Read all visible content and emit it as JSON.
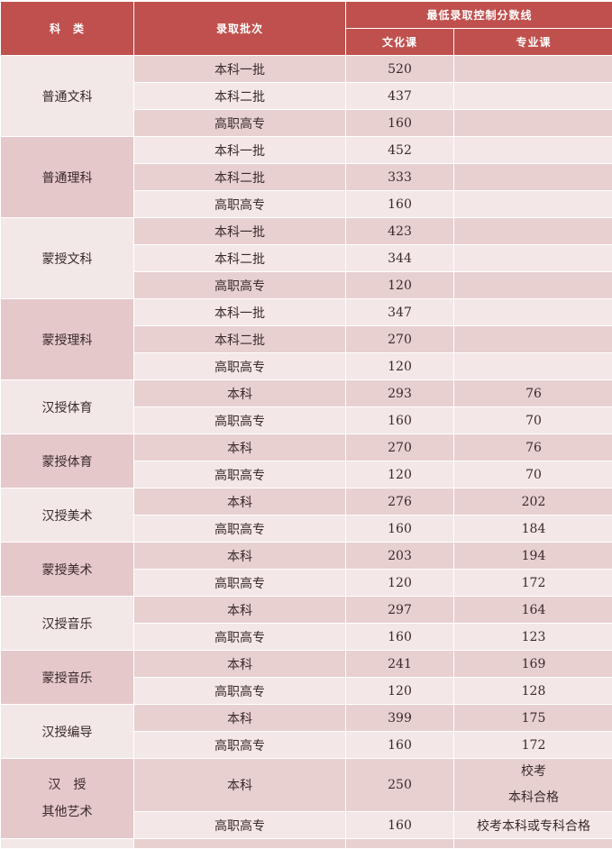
{
  "header": {
    "category": "科　类",
    "batch": "录取批次",
    "min_score": "最低录取控制分数线",
    "culture": "文化课",
    "major": "专业课"
  },
  "colors": {
    "header": "#c0504d",
    "row_dark": "#e8d0d0",
    "row_light": "#f3e7e7"
  },
  "groups": [
    {
      "name": "普通文科",
      "rows": [
        [
          "本科一批",
          "520",
          ""
        ],
        [
          "本科二批",
          "437",
          ""
        ],
        [
          "高职高专",
          "160",
          ""
        ]
      ]
    },
    {
      "name": "普通理科",
      "rows": [
        [
          "本科一批",
          "452",
          ""
        ],
        [
          "本科二批",
          "333",
          ""
        ],
        [
          "高职高专",
          "160",
          ""
        ]
      ]
    },
    {
      "name": "蒙授文科",
      "rows": [
        [
          "本科一批",
          "423",
          ""
        ],
        [
          "本科二批",
          "344",
          ""
        ],
        [
          "高职高专",
          "120",
          ""
        ]
      ]
    },
    {
      "name": "蒙授理科",
      "rows": [
        [
          "本科一批",
          "347",
          ""
        ],
        [
          "本科二批",
          "270",
          ""
        ],
        [
          "高职高专",
          "120",
          ""
        ]
      ]
    },
    {
      "name": "汉授体育",
      "rows": [
        [
          "本科",
          "293",
          "76"
        ],
        [
          "高职高专",
          "160",
          "70"
        ]
      ]
    },
    {
      "name": "蒙授体育",
      "rows": [
        [
          "本科",
          "270",
          "76"
        ],
        [
          "高职高专",
          "120",
          "70"
        ]
      ]
    },
    {
      "name": "汉授美术",
      "rows": [
        [
          "本科",
          "276",
          "202"
        ],
        [
          "高职高专",
          "160",
          "184"
        ]
      ]
    },
    {
      "name": "蒙授美术",
      "rows": [
        [
          "本科",
          "203",
          "194"
        ],
        [
          "高职高专",
          "120",
          "172"
        ]
      ]
    },
    {
      "name": "汉授音乐",
      "rows": [
        [
          "本科",
          "297",
          "164"
        ],
        [
          "高职高专",
          "160",
          "123"
        ]
      ]
    },
    {
      "name": "蒙授音乐",
      "rows": [
        [
          "本科",
          "241",
          "169"
        ],
        [
          "高职高专",
          "120",
          "128"
        ]
      ]
    },
    {
      "name": "汉授编导",
      "rows": [
        [
          "本科",
          "399",
          "175"
        ],
        [
          "高职高专",
          "160",
          "172"
        ]
      ]
    },
    {
      "name": "汉　授\n其他艺术",
      "rows": [
        [
          "本科",
          "250",
          "校考\n本科合格"
        ],
        [
          "高职高专",
          "160",
          "校考本科或专科合格"
        ]
      ]
    }
  ]
}
